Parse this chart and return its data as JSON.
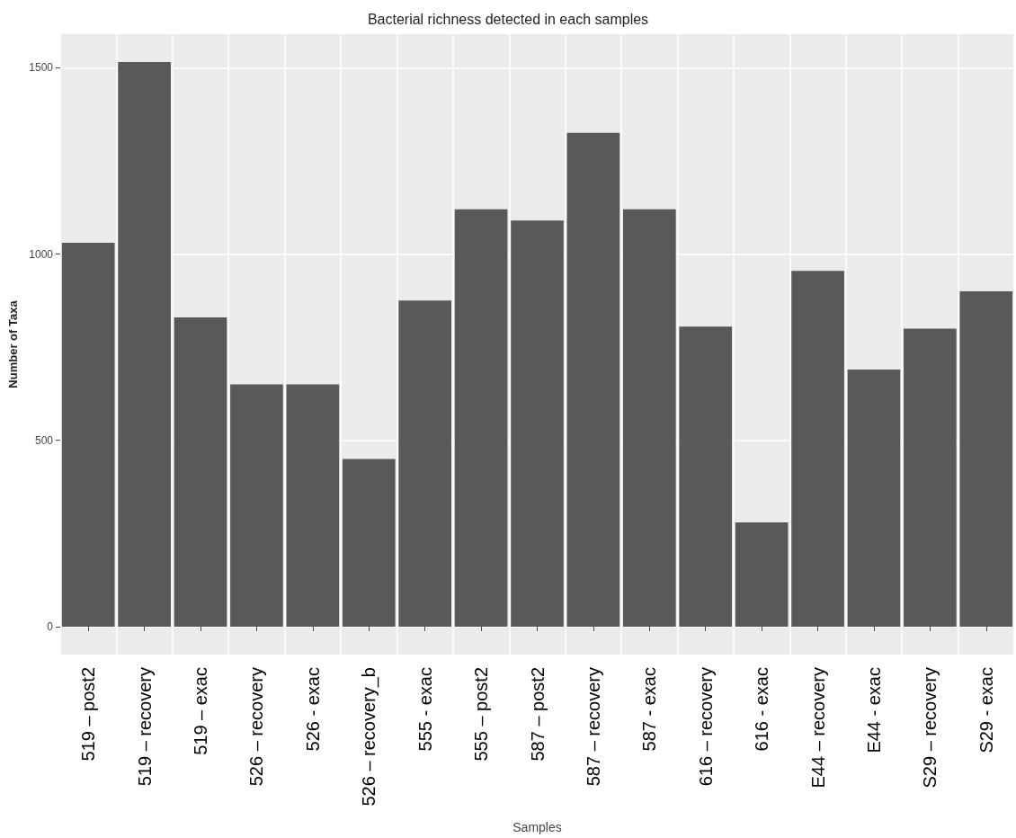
{
  "chart_data": {
    "type": "bar",
    "title": "Bacterial richness detected in each samples",
    "xlabel": "Samples",
    "ylabel": "Number of Taxa",
    "categories": [
      "519 – post2",
      "519 – recovery",
      "519 – exac",
      "526 – recovery",
      "526 - exac",
      "526 – recovery_b",
      "555 - exac",
      "555 – post2",
      "587 – post2",
      "587 – recovery",
      "587 - exac",
      "616 – recovery",
      "616 - exac",
      "E44 – recovery",
      "E44 - exac",
      "S29 – recovery",
      "S29 - exac"
    ],
    "values": [
      1030,
      1515,
      830,
      650,
      650,
      450,
      875,
      1120,
      1090,
      1325,
      1120,
      805,
      280,
      955,
      690,
      800,
      900
    ],
    "color": "#595959",
    "ylim": [
      -75,
      1590
    ],
    "yticks": [
      0,
      500,
      1000,
      1500
    ],
    "grid": true
  }
}
